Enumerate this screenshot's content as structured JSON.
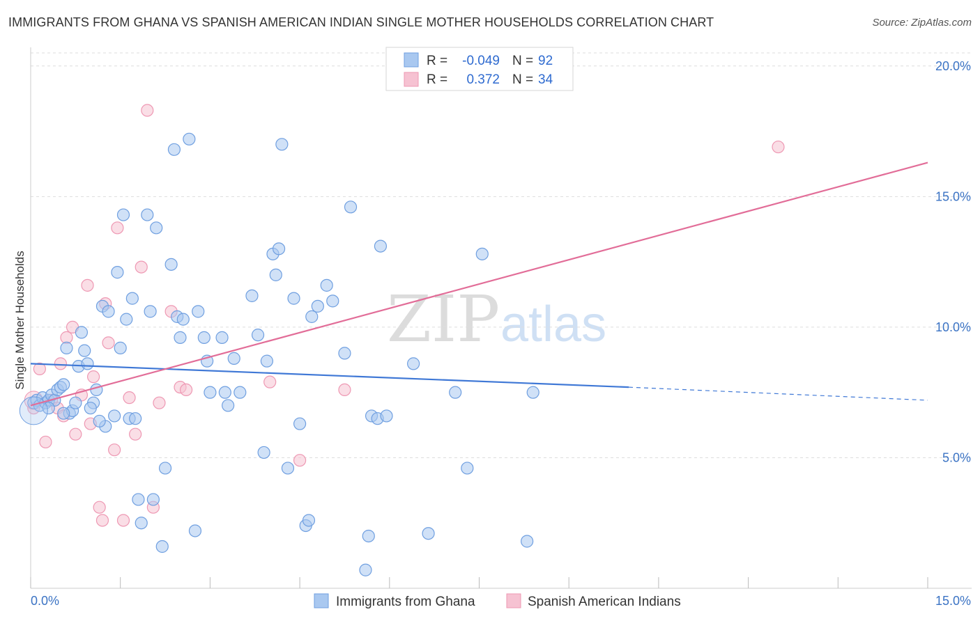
{
  "title": "IMMIGRANTS FROM GHANA VS SPANISH AMERICAN INDIAN SINGLE MOTHER HOUSEHOLDS CORRELATION CHART",
  "source": "Source: ZipAtlas.com",
  "watermark": {
    "zip": "ZIP",
    "atlas": "atlas"
  },
  "colors": {
    "blue_fill": "#a9c8f0",
    "blue_stroke": "#6f9fe0",
    "blue_line": "#3f78d6",
    "pink_fill": "#f6c2d2",
    "pink_stroke": "#ee98b3",
    "pink_line": "#e26d98",
    "tick_label": "#3b73c4"
  },
  "legend": {
    "rows": [
      {
        "r_label": "R =",
        "r_value": "-0.049",
        "n_label": "N =",
        "n_value": "92"
      },
      {
        "r_label": "R =",
        "r_value": "0.372",
        "n_label": "N =",
        "n_value": "34"
      }
    ]
  },
  "chart_data": {
    "type": "scatter",
    "title": "IMMIGRANTS FROM GHANA VS SPANISH AMERICAN INDIAN SINGLE MOTHER HOUSEHOLDS CORRELATION CHART",
    "xlabel": "",
    "ylabel": "Single Mother Households",
    "xlim": [
      0,
      15
    ],
    "ylim": [
      0,
      20.5
    ],
    "x_tick_labels": [
      "0.0%",
      "15.0%"
    ],
    "y_ticks": [
      5,
      10,
      15,
      20
    ],
    "y_tick_labels": [
      "5.0%",
      "10.0%",
      "15.0%",
      "20.0%"
    ],
    "grid": "horizontal dashed",
    "legend_position": "top-center",
    "series": [
      {
        "name": "Immigrants from Ghana",
        "color": "#a9c8f0",
        "trend": {
          "x": [
            0.0,
            10.0,
            15.0
          ],
          "y": [
            8.6,
            7.7,
            7.2
          ],
          "dashed_after": 10.0
        },
        "points": [
          [
            0.05,
            7.1
          ],
          [
            0.1,
            7.2
          ],
          [
            0.15,
            7.0
          ],
          [
            0.2,
            7.3
          ],
          [
            0.25,
            7.1
          ],
          [
            0.3,
            7.2
          ],
          [
            0.35,
            7.4
          ],
          [
            0.4,
            7.2
          ],
          [
            0.45,
            7.6
          ],
          [
            0.5,
            7.7
          ],
          [
            0.55,
            7.8
          ],
          [
            0.6,
            9.2
          ],
          [
            0.65,
            6.7
          ],
          [
            0.7,
            6.8
          ],
          [
            0.75,
            7.1
          ],
          [
            0.8,
            8.5
          ],
          [
            0.85,
            9.8
          ],
          [
            0.9,
            9.1
          ],
          [
            0.95,
            8.6
          ],
          [
            1.05,
            7.1
          ],
          [
            1.1,
            7.6
          ],
          [
            1.2,
            10.8
          ],
          [
            1.25,
            6.2
          ],
          [
            1.3,
            10.6
          ],
          [
            1.4,
            6.6
          ],
          [
            1.45,
            12.1
          ],
          [
            1.5,
            9.2
          ],
          [
            1.55,
            14.3
          ],
          [
            1.6,
            10.3
          ],
          [
            1.65,
            6.5
          ],
          [
            1.7,
            11.1
          ],
          [
            1.75,
            6.5
          ],
          [
            1.8,
            3.4
          ],
          [
            1.85,
            2.5
          ],
          [
            1.95,
            14.3
          ],
          [
            2.0,
            10.6
          ],
          [
            2.05,
            3.4
          ],
          [
            2.1,
            13.8
          ],
          [
            2.2,
            1.6
          ],
          [
            2.25,
            4.6
          ],
          [
            2.35,
            12.4
          ],
          [
            2.4,
            16.8
          ],
          [
            2.45,
            10.4
          ],
          [
            2.5,
            9.6
          ],
          [
            2.55,
            10.3
          ],
          [
            2.65,
            17.2
          ],
          [
            2.75,
            2.2
          ],
          [
            2.8,
            10.6
          ],
          [
            2.9,
            9.6
          ],
          [
            2.95,
            8.7
          ],
          [
            3.0,
            7.5
          ],
          [
            3.2,
            9.6
          ],
          [
            3.25,
            7.5
          ],
          [
            3.3,
            7.0
          ],
          [
            3.4,
            8.8
          ],
          [
            3.5,
            7.5
          ],
          [
            3.7,
            11.2
          ],
          [
            3.8,
            9.7
          ],
          [
            3.9,
            5.2
          ],
          [
            3.95,
            8.7
          ],
          [
            4.05,
            12.8
          ],
          [
            4.1,
            12.0
          ],
          [
            4.15,
            13.0
          ],
          [
            4.2,
            17.0
          ],
          [
            4.3,
            4.6
          ],
          [
            4.4,
            11.1
          ],
          [
            4.5,
            6.3
          ],
          [
            4.6,
            2.4
          ],
          [
            4.65,
            2.6
          ],
          [
            4.7,
            10.4
          ],
          [
            4.8,
            10.8
          ],
          [
            4.95,
            11.6
          ],
          [
            5.05,
            11.0
          ],
          [
            5.25,
            9.0
          ],
          [
            5.35,
            14.6
          ],
          [
            5.6,
            0.7
          ],
          [
            5.65,
            2.0
          ],
          [
            5.7,
            6.6
          ],
          [
            5.8,
            6.5
          ],
          [
            5.85,
            13.1
          ],
          [
            5.95,
            6.6
          ],
          [
            6.4,
            8.6
          ],
          [
            6.65,
            2.1
          ],
          [
            7.1,
            7.5
          ],
          [
            7.3,
            4.6
          ],
          [
            7.55,
            12.8
          ],
          [
            8.3,
            1.8
          ],
          [
            8.4,
            7.5
          ],
          [
            1.0,
            6.9
          ],
          [
            0.3,
            6.9
          ],
          [
            0.55,
            6.7
          ],
          [
            1.15,
            6.4
          ]
        ]
      },
      {
        "name": "Spanish American Indians",
        "color": "#f6c2d2",
        "trend": {
          "x": [
            0.0,
            15.0
          ],
          "y": [
            7.0,
            16.3
          ],
          "dashed_after": null
        },
        "points": [
          [
            0.05,
            6.9
          ],
          [
            0.15,
            8.4
          ],
          [
            0.25,
            5.6
          ],
          [
            0.35,
            7.2
          ],
          [
            0.45,
            6.9
          ],
          [
            0.5,
            8.6
          ],
          [
            0.55,
            6.6
          ],
          [
            0.6,
            9.6
          ],
          [
            0.7,
            10.0
          ],
          [
            0.75,
            5.9
          ],
          [
            0.85,
            7.4
          ],
          [
            0.95,
            11.6
          ],
          [
            1.0,
            6.3
          ],
          [
            1.05,
            8.1
          ],
          [
            1.15,
            3.1
          ],
          [
            1.2,
            2.6
          ],
          [
            1.25,
            10.9
          ],
          [
            1.3,
            9.4
          ],
          [
            1.4,
            5.3
          ],
          [
            1.45,
            13.8
          ],
          [
            1.55,
            2.6
          ],
          [
            1.65,
            7.3
          ],
          [
            1.75,
            5.9
          ],
          [
            1.85,
            12.3
          ],
          [
            1.95,
            18.3
          ],
          [
            2.05,
            3.1
          ],
          [
            2.15,
            7.1
          ],
          [
            2.35,
            10.6
          ],
          [
            2.5,
            7.7
          ],
          [
            2.6,
            7.6
          ],
          [
            4.0,
            7.9
          ],
          [
            4.5,
            4.9
          ],
          [
            5.25,
            7.6
          ],
          [
            12.5,
            16.9
          ]
        ]
      }
    ]
  },
  "axis": {
    "y_title": "Single Mother Households",
    "x_min_label": "0.0%",
    "x_max_label": "15.0%"
  }
}
